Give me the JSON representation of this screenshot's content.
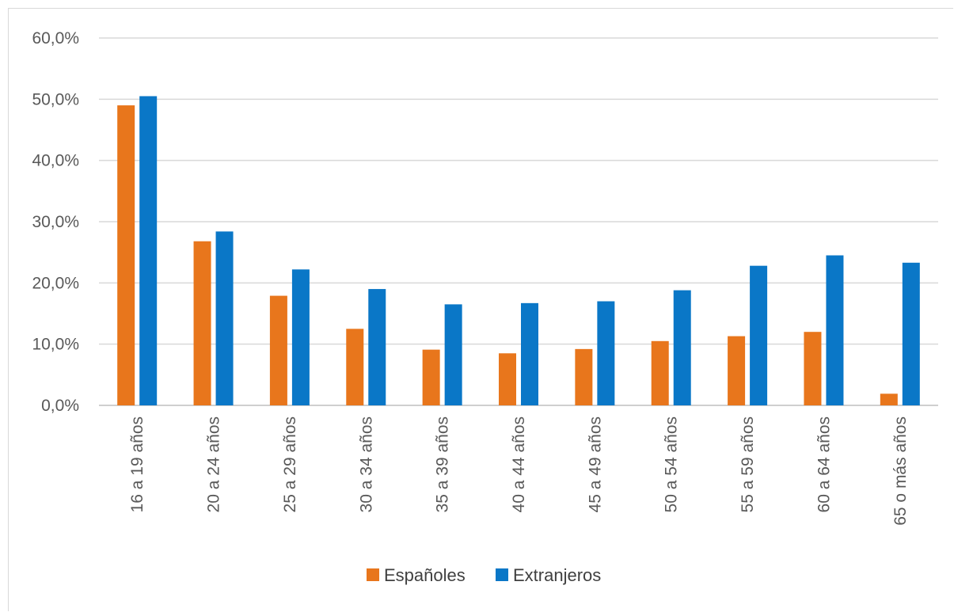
{
  "chart_data": {
    "type": "bar",
    "title": "",
    "xlabel": "",
    "ylabel": "",
    "categories": [
      "16 a 19 años",
      "20 a 24 años",
      "25 a 29 años",
      "30 a 34 años",
      "35 a 39 años",
      "40 a 44 años",
      "45 a 49 años",
      "50 a 54 años",
      "55 a 59 años",
      "60 a 64 años",
      "65 o más años"
    ],
    "series": [
      {
        "name": "Españoles",
        "color": "#e8761c",
        "values": [
          49.0,
          26.8,
          17.9,
          12.5,
          9.1,
          8.5,
          9.2,
          10.5,
          11.3,
          12.0,
          1.9
        ]
      },
      {
        "name": "Extranjeros",
        "color": "#0a77c7",
        "values": [
          50.5,
          28.4,
          22.2,
          19.0,
          16.5,
          16.7,
          17.0,
          18.8,
          22.8,
          24.5,
          23.3
        ]
      }
    ],
    "ylim": [
      0,
      60
    ],
    "yticks": [
      "0,0%",
      "10,0%",
      "20,0%",
      "30,0%",
      "40,0%",
      "50,0%",
      "60,0%"
    ],
    "grid": true,
    "legend_position": "bottom"
  }
}
